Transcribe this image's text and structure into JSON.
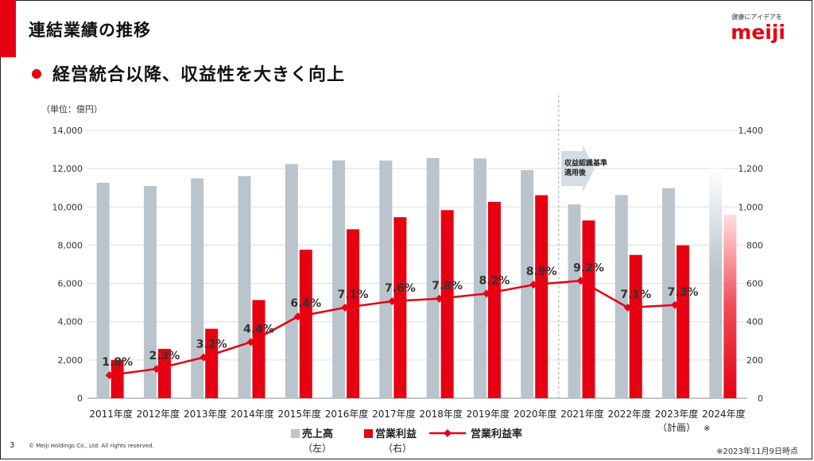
{
  "page": {
    "title": "連結業績の推移",
    "subtitle": "経営統合以降、収益性を大きく向上",
    "logo_tagline": "健康にアイデアを",
    "logo_text": "meiji",
    "page_number": "3",
    "copyright": "© Meiji Holdings Co., Ltd. All rights reserved.",
    "date_note": "※2023年11月9日時点",
    "unit_label": "（単位：億円）",
    "annotation": [
      "収益認識基準",
      "適用後"
    ],
    "plan_note": "（計画）",
    "plan_mark": "※"
  },
  "colors": {
    "sales": "#b9c4cc",
    "profit": "#e60012",
    "margin": "#e60012"
  },
  "chart_data": {
    "type": "bar",
    "categories": [
      "2011年度",
      "2012年度",
      "2013年度",
      "2014年度",
      "2015年度",
      "2016年度",
      "2017年度",
      "2018年度",
      "2019年度",
      "2020年度",
      "2021年度",
      "2022年度",
      "2023年度",
      "2024年度"
    ],
    "series": [
      {
        "name": "売上高",
        "name_sub": "（左）",
        "axis": "left",
        "values": [
          11260,
          11090,
          11490,
          11610,
          12240,
          12430,
          12420,
          12550,
          12530,
          11920,
          10130,
          10620,
          10980,
          null
        ]
      },
      {
        "name": "営業利益",
        "name_sub": "（右）",
        "axis": "right",
        "values": [
          200,
          258,
          363,
          513,
          776,
          883,
          946,
          983,
          1026,
          1061,
          929,
          749,
          799,
          null
        ]
      },
      {
        "name": "営業利益率",
        "type": "line",
        "values": [
          1.8,
          2.3,
          3.2,
          4.4,
          6.4,
          7.1,
          7.6,
          7.8,
          8.2,
          8.9,
          9.2,
          7.1,
          7.3,
          null
        ]
      }
    ],
    "margin_labels": [
      "1.8%",
      "2.3%",
      "3.2%",
      "4.4%",
      "6.4%",
      "7.1%",
      "7.6%",
      "7.8%",
      "8.2%",
      "8.9%",
      "9.2%",
      "7.1%",
      "7.3%"
    ],
    "yleft_ticks": [
      "0",
      "2,000",
      "4,000",
      "6,000",
      "8,000",
      "10,000",
      "12,000",
      "14,000"
    ],
    "yright_ticks": [
      "0",
      "200",
      "400",
      "600",
      "800",
      "1,000",
      "1,200",
      "1,400"
    ],
    "ylim_left": [
      0,
      14000
    ],
    "ylim_right": [
      0,
      1400
    ],
    "grid": true,
    "legend_position": "bottom"
  }
}
